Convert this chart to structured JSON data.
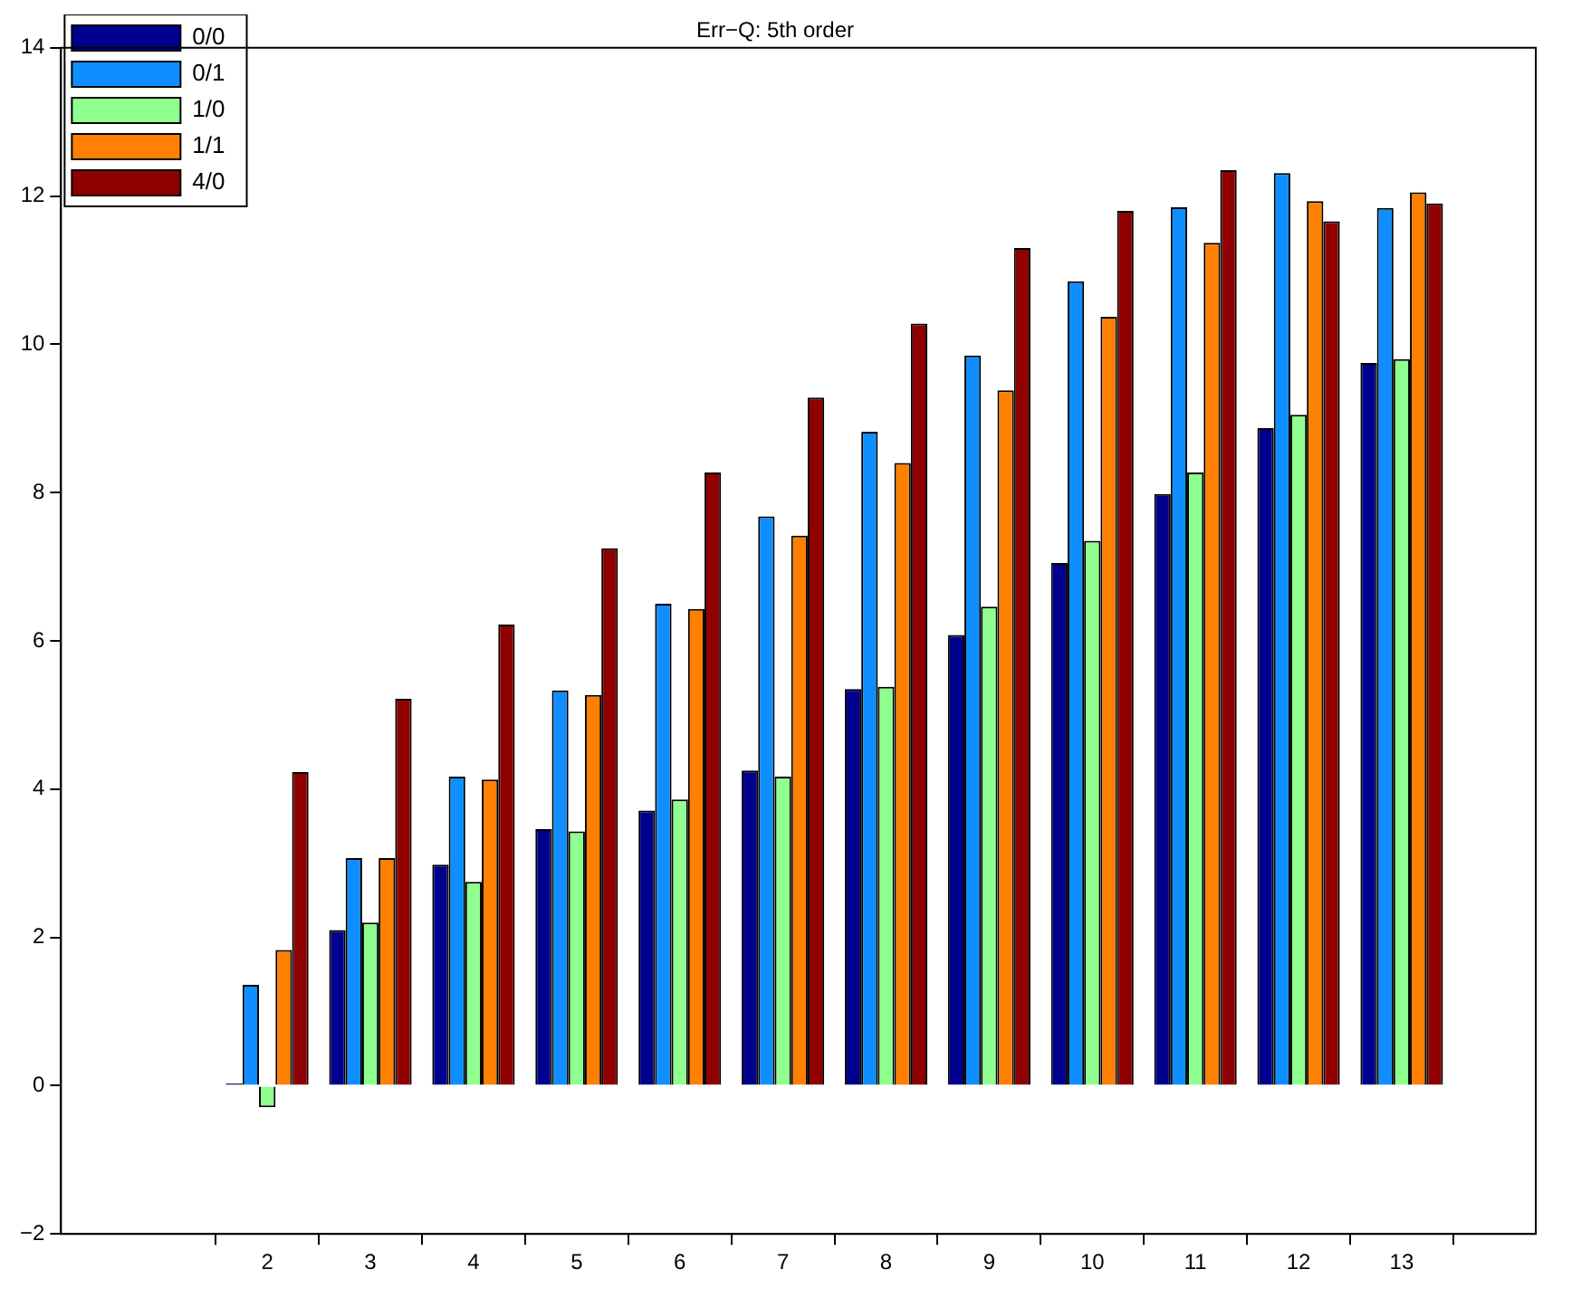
{
  "chart_data": {
    "type": "bar",
    "title": "Err−Q: 5th order",
    "x": [
      2,
      3,
      4,
      5,
      6,
      7,
      8,
      9,
      10,
      11,
      12,
      13
    ],
    "xlim": [
      0,
      14.3
    ],
    "xticks": [
      2,
      3,
      4,
      5,
      6,
      7,
      8,
      9,
      10,
      11,
      12,
      13
    ],
    "ylim": [
      -2,
      14
    ],
    "yticks": [
      -2,
      0,
      2,
      4,
      6,
      8,
      10,
      12,
      14
    ],
    "grid": false,
    "legend": "top left",
    "series": [
      {
        "name": "0/0",
        "color": "#00008f",
        "values": [
          0.03,
          2.1,
          2.98,
          3.46,
          3.71,
          4.25,
          5.35,
          6.08,
          7.05,
          7.98,
          8.87,
          9.75
        ]
      },
      {
        "name": "0/1",
        "color": "#0f8fff",
        "values": [
          1.36,
          3.07,
          4.17,
          5.33,
          6.5,
          7.68,
          8.82,
          9.85,
          10.85,
          11.85,
          12.31,
          11.84
        ]
      },
      {
        "name": "1/0",
        "color": "#8fff8f",
        "values": [
          -0.29,
          2.2,
          2.75,
          3.43,
          3.86,
          4.17,
          5.38,
          6.46,
          7.35,
          8.27,
          9.05,
          9.8
        ]
      },
      {
        "name": "1/1",
        "color": "#ff8000",
        "values": [
          1.83,
          3.07,
          4.13,
          5.27,
          6.43,
          7.42,
          8.4,
          9.38,
          10.37,
          11.37,
          11.93,
          12.05
        ]
      },
      {
        "name": "4/0",
        "color": "#8f0000",
        "values": [
          4.23,
          5.22,
          6.22,
          7.25,
          8.27,
          9.28,
          10.28,
          11.3,
          11.8,
          12.35,
          11.66,
          11.9
        ]
      }
    ]
  }
}
